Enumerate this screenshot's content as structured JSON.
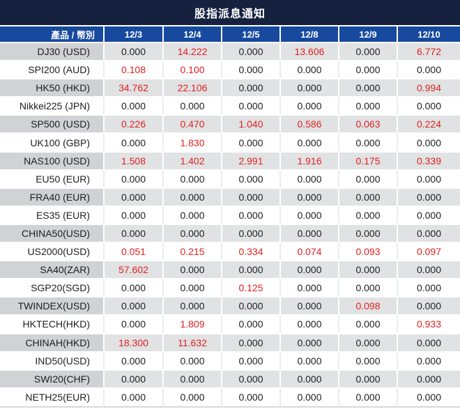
{
  "title": "股指派息通知",
  "colors": {
    "title_bar_bg": "#15213f",
    "header_bg": "#17499e",
    "header_text": "#ffffff",
    "row_gray_label_bg": "#d0d2d5",
    "row_gray_value_bg": "#e1e2e3",
    "row_white_bg": "#ffffff",
    "value_positive": "#e02020",
    "value_zero": "#1d1d1f"
  },
  "chart_data": {
    "type": "table",
    "title": "股指派息通知",
    "columns": [
      "產品 / 幣別",
      "12/3",
      "12/4",
      "12/5",
      "12/8",
      "12/9",
      "12/10"
    ],
    "rows": [
      {
        "label": "DJ30 (USD)",
        "values": [
          "0.000",
          "14.222",
          "0.000",
          "13.606",
          "0.000",
          "6.772"
        ]
      },
      {
        "label": "SPI200 (AUD)",
        "values": [
          "0.108",
          "0.100",
          "0.000",
          "0.000",
          "0.000",
          "0.000"
        ]
      },
      {
        "label": "HK50 (HKD)",
        "values": [
          "34.762",
          "22.106",
          "0.000",
          "0.000",
          "0.000",
          "0.994"
        ]
      },
      {
        "label": "Nikkei225 (JPN)",
        "values": [
          "0.000",
          "0.000",
          "0.000",
          "0.000",
          "0.000",
          "0.000"
        ]
      },
      {
        "label": "SP500 (USD)",
        "values": [
          "0.226",
          "0.470",
          "1.040",
          "0.586",
          "0.063",
          "0.224"
        ]
      },
      {
        "label": "UK100 (GBP)",
        "values": [
          "0.000",
          "1.830",
          "0.000",
          "0.000",
          "0.000",
          "0.000"
        ]
      },
      {
        "label": "NAS100 (USD)",
        "values": [
          "1.508",
          "1.402",
          "2.991",
          "1.916",
          "0.175",
          "0.339"
        ]
      },
      {
        "label": "EU50 (EUR)",
        "values": [
          "0.000",
          "0.000",
          "0.000",
          "0.000",
          "0.000",
          "0.000"
        ]
      },
      {
        "label": "FRA40 (EUR)",
        "values": [
          "0.000",
          "0.000",
          "0.000",
          "0.000",
          "0.000",
          "0.000"
        ]
      },
      {
        "label": "ES35 (EUR)",
        "values": [
          "0.000",
          "0.000",
          "0.000",
          "0.000",
          "0.000",
          "0.000"
        ]
      },
      {
        "label": "CHINA50(USD)",
        "values": [
          "0.000",
          "0.000",
          "0.000",
          "0.000",
          "0.000",
          "0.000"
        ]
      },
      {
        "label": "US2000(USD)",
        "values": [
          "0.051",
          "0.215",
          "0.334",
          "0.074",
          "0.093",
          "0.097"
        ]
      },
      {
        "label": "SA40(ZAR)",
        "values": [
          "57.602",
          "0.000",
          "0.000",
          "0.000",
          "0.000",
          "0.000"
        ]
      },
      {
        "label": "SGP20(SGD)",
        "values": [
          "0.000",
          "0.000",
          "0.125",
          "0.000",
          "0.000",
          "0.000"
        ]
      },
      {
        "label": "TWINDEX(USD)",
        "values": [
          "0.000",
          "0.000",
          "0.000",
          "0.000",
          "0.098",
          "0.000"
        ]
      },
      {
        "label": "HKTECH(HKD)",
        "values": [
          "0.000",
          "1.809",
          "0.000",
          "0.000",
          "0.000",
          "0.933"
        ]
      },
      {
        "label": "CHINAH(HKD)",
        "values": [
          "18.300",
          "11.632",
          "0.000",
          "0.000",
          "0.000",
          "0.000"
        ]
      },
      {
        "label": "IND50(USD)",
        "values": [
          "0.000",
          "0.000",
          "0.000",
          "0.000",
          "0.000",
          "0.000"
        ]
      },
      {
        "label": "SWI20(CHF)",
        "values": [
          "0.000",
          "0.000",
          "0.000",
          "0.000",
          "0.000",
          "0.000"
        ]
      },
      {
        "label": "NETH25(EUR)",
        "values": [
          "0.000",
          "0.000",
          "0.000",
          "0.000",
          "0.000",
          "0.000"
        ]
      }
    ]
  }
}
